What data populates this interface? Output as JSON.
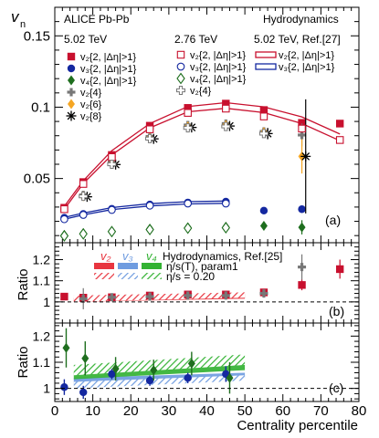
{
  "colors": {
    "red": "#c8102e",
    "blue": "#1428a0",
    "green": "#1e6e1e",
    "orange": "#f5a623",
    "gray": "#777777",
    "black": "#000000",
    "hydro_red_band": "#e8353f",
    "hydro_blue_band": "#6f9ce0",
    "hydro_green_band": "#33b233"
  },
  "chart_data": [
    {
      "panel": "top",
      "type": "scatter",
      "ylabel": "v",
      "ylabel_sub": "n",
      "ylim": [
        0.005,
        0.17
      ],
      "xlim": [
        0,
        80
      ],
      "yticks": [
        "0.05",
        "0.1",
        "0.15"
      ],
      "yticks_values": [
        0.05,
        0.1,
        0.15
      ],
      "panel_label": "(a)",
      "texts": {
        "experiment": "ALICE Pb-Pb",
        "energy_502": "5.02 TeV",
        "energy_276": "2.76 TeV",
        "hydro_title": "Hydrodynamics",
        "hydro_ref": "5.02 TeV, Ref.[27]"
      },
      "legend_502": [
        {
          "label": "v₂{2, |Δη|>1}",
          "marker": "square-filled",
          "color": "red"
        },
        {
          "label": "v₃{2, |Δη|>1}",
          "marker": "circle-filled",
          "color": "blue"
        },
        {
          "label": "v₄{2, |Δη|>1}",
          "marker": "diamond-filled",
          "color": "green"
        },
        {
          "label": "v₂{4}",
          "marker": "cross-filled",
          "color": "gray"
        },
        {
          "label": "v₂{6}",
          "marker": "diamond-filled",
          "color": "orange"
        },
        {
          "label": "v₂{8}",
          "marker": "star",
          "color": "black"
        }
      ],
      "legend_276": [
        {
          "label": "v₂{2, |Δη|>1}",
          "marker": "square-open",
          "color": "red"
        },
        {
          "label": "v₃{2, |Δη|>1}",
          "marker": "circle-open",
          "color": "blue"
        },
        {
          "label": "v₄{2, |Δη|>1}",
          "marker": "diamond-open",
          "color": "green"
        },
        {
          "label": "v₂{4}",
          "marker": "cross-open",
          "color": "gray"
        }
      ],
      "legend_hydro": [
        {
          "label": "v₂{2, |Δη|>1}",
          "color": "red"
        },
        {
          "label": "v₃{2, |Δη|>1}",
          "color": "blue"
        }
      ],
      "series": [
        {
          "name": "v₂{2, |Δη|>1}",
          "marker": "square-filled",
          "color": "red",
          "x": [
            2.5,
            7.5,
            15,
            25,
            35,
            45,
            55,
            65,
            75
          ],
          "y": [
            0.0295,
            0.0475,
            0.0665,
            0.087,
            0.0995,
            0.1025,
            0.098,
            0.089,
            0.0885
          ]
        },
        {
          "name": "v₃{2, |Δη|>1}",
          "marker": "circle-filled",
          "color": "blue",
          "x": [
            2.5,
            7.5,
            15,
            25,
            35,
            45,
            55,
            65
          ],
          "y": [
            0.0225,
            0.0252,
            0.0288,
            0.0318,
            0.0332,
            0.0338,
            0.0275,
            0.0285
          ]
        },
        {
          "name": "v₄{2, |Δη|>1}",
          "marker": "diamond-filled",
          "color": "green",
          "x": [
            2.5,
            7.5,
            15,
            25,
            35,
            45,
            55,
            65
          ],
          "y": [
            0.0105,
            0.0118,
            0.0132,
            0.0148,
            0.0158,
            0.0162,
            0.0168,
            0.0158
          ],
          "err": [
            0.0015,
            0.0015,
            0.0015,
            0.0015,
            0.0015,
            0.002,
            0.003,
            0.005
          ]
        },
        {
          "name": "v₂{4}",
          "marker": "cross-filled",
          "color": "gray",
          "x": [
            7.5,
            15,
            25,
            35,
            45,
            55,
            65
          ],
          "y": [
            0.0385,
            0.0615,
            0.0795,
            0.0875,
            0.0885,
            0.083,
            0.0805
          ],
          "err": [
            0.002,
            0.002,
            0.002,
            0.002,
            0.002,
            0.003,
            0.008
          ]
        },
        {
          "name": "v₂{6}",
          "marker": "diamond-filled",
          "color": "orange",
          "x": [
            7.5,
            15,
            25,
            35,
            45,
            55,
            65
          ],
          "y": [
            0.0375,
            0.0605,
            0.0785,
            0.0865,
            0.0875,
            0.0825,
            0.0655
          ],
          "err": [
            0.002,
            0.002,
            0.002,
            0.002,
            0.002,
            0.003,
            0.012
          ]
        },
        {
          "name": "v₂{8}",
          "marker": "star",
          "color": "black",
          "x": [
            8.5,
            16,
            26,
            36,
            46,
            56,
            66
          ],
          "y": [
            0.0372,
            0.0598,
            0.0778,
            0.0858,
            0.0868,
            0.0815,
            0.0655
          ],
          "err": [
            0.002,
            0.002,
            0.002,
            0.002,
            0.002,
            0.004,
            0.04
          ]
        },
        {
          "name": "v₂{2, |Δη|>1} 2.76 TeV",
          "marker": "square-open",
          "color": "red",
          "x": [
            2.5,
            7.5,
            15,
            25,
            35,
            45,
            55,
            65,
            75
          ],
          "y": [
            0.0285,
            0.0462,
            0.065,
            0.0845,
            0.096,
            0.099,
            0.0935,
            0.085,
            0.077
          ]
        },
        {
          "name": "v₃{2, |Δη|>1} 2.76 TeV",
          "marker": "circle-open",
          "color": "blue",
          "x": [
            2.5,
            7.5,
            15,
            25,
            35,
            45
          ],
          "y": [
            0.0215,
            0.0245,
            0.028,
            0.031,
            0.0325,
            0.0325
          ]
        },
        {
          "name": "v₄{2, |Δη|>1} 2.76 TeV",
          "marker": "diamond-open",
          "color": "green",
          "x": [
            2.5,
            7.5,
            15,
            25,
            35,
            45
          ],
          "y": [
            0.0098,
            0.0112,
            0.0128,
            0.0142,
            0.0152,
            0.0155
          ]
        },
        {
          "name": "v₂{4} 2.76 TeV",
          "marker": "cross-open",
          "color": "gray",
          "x": [
            7.5,
            15,
            25,
            35,
            45,
            55
          ],
          "y": [
            0.0375,
            0.06,
            0.078,
            0.0855,
            0.0865,
            0.0815
          ]
        }
      ],
      "hydro_curves": [
        {
          "name": "Hydro v₂{2, |Δη|>1}",
          "color": "red",
          "x": [
            2.5,
            7.5,
            15,
            25,
            35,
            45,
            55,
            65,
            75
          ],
          "y_low": [
            0.0285,
            0.0465,
            0.0665,
            0.0855,
            0.0968,
            0.0992,
            0.0962,
            0.0885,
            0.0765
          ],
          "y_high": [
            0.0305,
            0.0485,
            0.0695,
            0.0885,
            0.1005,
            0.1032,
            0.1002,
            0.0932,
            0.0812
          ]
        },
        {
          "name": "Hydro v₃{2, |Δη|>1}",
          "color": "blue",
          "x": [
            2.5,
            7.5,
            15,
            25,
            35,
            45
          ],
          "y_low": [
            0.0215,
            0.0245,
            0.0282,
            0.0308,
            0.0322,
            0.0326
          ],
          "y_high": [
            0.0228,
            0.0258,
            0.0296,
            0.0324,
            0.0338,
            0.0342
          ]
        }
      ]
    },
    {
      "panel": "middle",
      "type": "scatter",
      "ylabel": "Ratio",
      "ylim": [
        0.9,
        1.28
      ],
      "yticks": [
        "1",
        "1.1",
        "1.2"
      ],
      "yticks_values": [
        1.0,
        1.1,
        1.2
      ],
      "panel_label": "(b)",
      "texts": {
        "legend_v2": "v₂",
        "legend_v3": "v₃",
        "legend_v4": "v₄",
        "hydro_title": "Hydrodynamics, Ref.[25]",
        "param1": "η/s(T), param1",
        "eta_s": "η/s = 0.20"
      },
      "series": [
        {
          "name": "v₂{2} ratio",
          "marker": "square-filled",
          "color": "red",
          "x": [
            2.5,
            7.5,
            15,
            25,
            35,
            45,
            55,
            65,
            75
          ],
          "y": [
            1.025,
            1.02,
            1.022,
            1.03,
            1.035,
            1.035,
            1.045,
            1.08,
            1.155
          ],
          "err": [
            0.01,
            0.01,
            0.008,
            0.008,
            0.008,
            0.008,
            0.015,
            0.025,
            0.045
          ]
        },
        {
          "name": "v₂{4} ratio",
          "marker": "cross-filled",
          "color": "gray",
          "x": [
            7.5,
            15,
            25,
            35,
            45,
            55,
            65
          ],
          "y": [
            1.015,
            1.022,
            1.025,
            1.03,
            1.03,
            1.04,
            1.165
          ],
          "err": [
            0.05,
            0.01,
            0.01,
            0.01,
            0.01,
            0.02,
            0.06
          ]
        }
      ],
      "bands": [
        {
          "name": "v₂ η/s(T), param1",
          "color": "hydro_red_band",
          "style": "solid",
          "x": [
            5,
            50
          ],
          "y_low": [
            1.0,
            1.015
          ],
          "y_high": [
            1.02,
            1.04
          ]
        },
        {
          "name": "v₂ η/s = 0.20",
          "color": "hydro_red_band",
          "style": "hatched",
          "x": [
            5,
            50
          ],
          "y_low": [
            1.0,
            1.02
          ],
          "y_high": [
            1.03,
            1.045
          ]
        }
      ]
    },
    {
      "panel": "bottom",
      "type": "scatter",
      "ylabel": "Ratio",
      "ylim": [
        0.95,
        1.25
      ],
      "yticks": [
        "1",
        "1.1",
        "1.2"
      ],
      "yticks_values": [
        1.0,
        1.1,
        1.2
      ],
      "xlim": [
        0,
        80
      ],
      "xticks": [
        "0",
        "10",
        "20",
        "30",
        "40",
        "50",
        "60",
        "70",
        "80"
      ],
      "xticks_values": [
        0,
        10,
        20,
        30,
        40,
        50,
        60,
        70,
        80
      ],
      "xlabel": "Centrality percentile",
      "panel_label": "(c)",
      "series": [
        {
          "name": "v₃ ratio",
          "marker": "circle-filled",
          "color": "blue",
          "x": [
            2.5,
            7.5,
            15,
            25,
            35,
            45
          ],
          "y": [
            1.005,
            0.985,
            1.055,
            1.03,
            1.04,
            1.055
          ],
          "err": [
            0.03,
            0.025,
            0.02,
            0.02,
            0.02,
            0.03
          ]
        },
        {
          "name": "v₄ ratio",
          "marker": "diamond-filled",
          "color": "green",
          "x": [
            3,
            8,
            16,
            26,
            36,
            46
          ],
          "y": [
            1.155,
            1.115,
            1.075,
            1.07,
            1.095,
            1.04
          ],
          "err": [
            0.075,
            0.065,
            0.045,
            0.04,
            0.045,
            0.06
          ]
        }
      ],
      "bands": [
        {
          "name": "v₃ η/s(T), param1",
          "color": "hydro_blue_band",
          "style": "solid",
          "x": [
            5,
            50
          ],
          "y_low": [
            1.015,
            1.04
          ],
          "y_high": [
            1.04,
            1.06
          ]
        },
        {
          "name": "v₄ η/s(T), param1",
          "color": "hydro_green_band",
          "style": "solid",
          "x": [
            5,
            50
          ],
          "y_low": [
            1.035,
            1.07
          ],
          "y_high": [
            1.06,
            1.09
          ]
        },
        {
          "name": "v₄ η/s = 0.20",
          "color": "hydro_green_band",
          "style": "hatched",
          "x": [
            5,
            50
          ],
          "y_low": [
            1.05,
            1.09
          ],
          "y_high": [
            1.09,
            1.13
          ]
        },
        {
          "name": "v₃ η/s = 0.20",
          "color": "hydro_blue_band",
          "style": "hatched",
          "x": [
            5,
            50
          ],
          "y_low": [
            1.0,
            1.03
          ],
          "y_high": [
            1.025,
            1.05
          ]
        }
      ]
    }
  ]
}
